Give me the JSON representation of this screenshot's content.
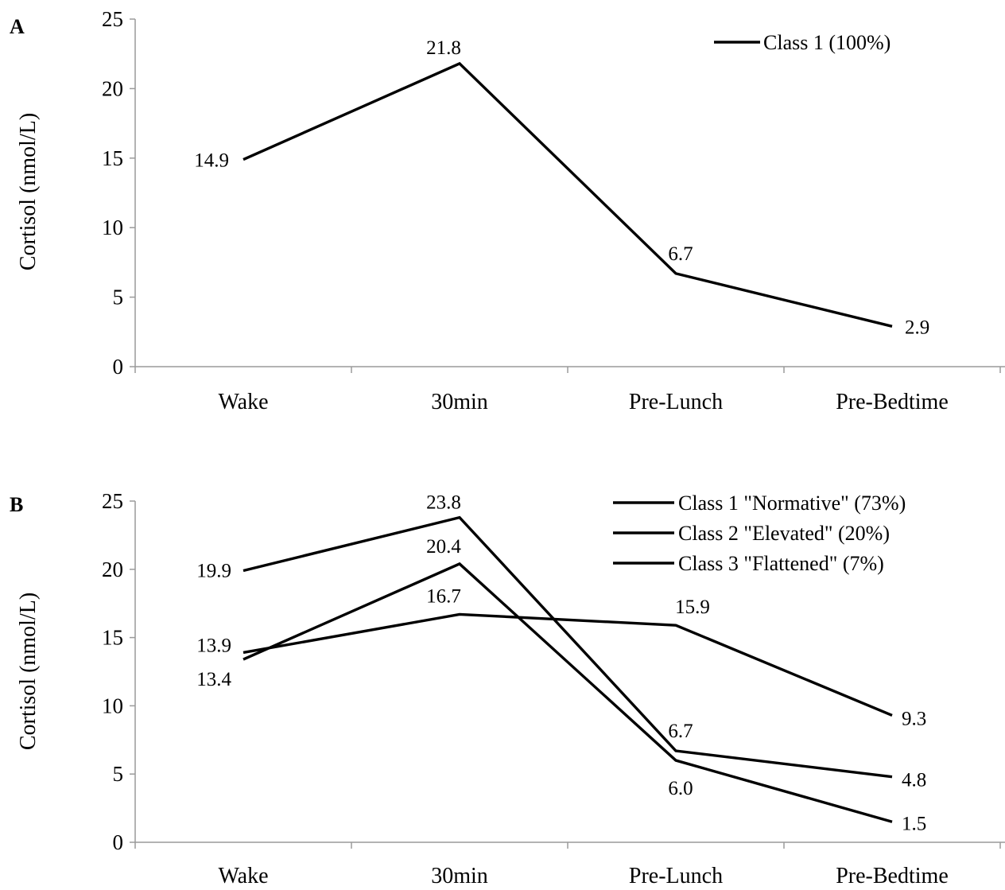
{
  "chart_data": [
    {
      "type": "line",
      "panel": "A",
      "title": "",
      "xlabel": "",
      "ylabel": "Cortisol (nmol/L)",
      "categories": [
        "Wake",
        "30min",
        "Pre-Lunch",
        "Pre-Bedtime"
      ],
      "ylim": [
        0,
        25
      ],
      "yticks": [
        0,
        5,
        10,
        15,
        20,
        25
      ],
      "grid": false,
      "legend_position": "top-right",
      "series": [
        {
          "name": "Class 1 (100%)",
          "values": [
            14.9,
            21.8,
            6.7,
            2.9
          ],
          "labels": [
            "14.9",
            "21.8",
            "6.7",
            "2.9"
          ]
        }
      ]
    },
    {
      "type": "line",
      "panel": "B",
      "title": "",
      "xlabel": "",
      "ylabel": "Cortisol (nmol/L)",
      "categories": [
        "Wake",
        "30min",
        "Pre-Lunch",
        "Pre-Bedtime"
      ],
      "ylim": [
        0,
        25
      ],
      "yticks": [
        0,
        5,
        10,
        15,
        20,
        25
      ],
      "grid": false,
      "legend_position": "top-right",
      "series": [
        {
          "name": "Class 1 \"Normative\" (73%)",
          "values": [
            13.4,
            20.4,
            6.0,
            1.5
          ],
          "labels": [
            "13.4",
            "20.4",
            "6.0",
            "1.5"
          ]
        },
        {
          "name": "Class 2 \"Elevated\" (20%)",
          "values": [
            19.9,
            23.8,
            6.7,
            4.8
          ],
          "labels": [
            "19.9",
            "23.8",
            "6.7",
            "4.8"
          ]
        },
        {
          "name": "Class 3 \"Flattened\" (7%)",
          "values": [
            13.9,
            16.7,
            15.9,
            9.3
          ],
          "labels": [
            "13.9",
            "16.7",
            "15.9",
            "9.3"
          ]
        }
      ]
    }
  ]
}
